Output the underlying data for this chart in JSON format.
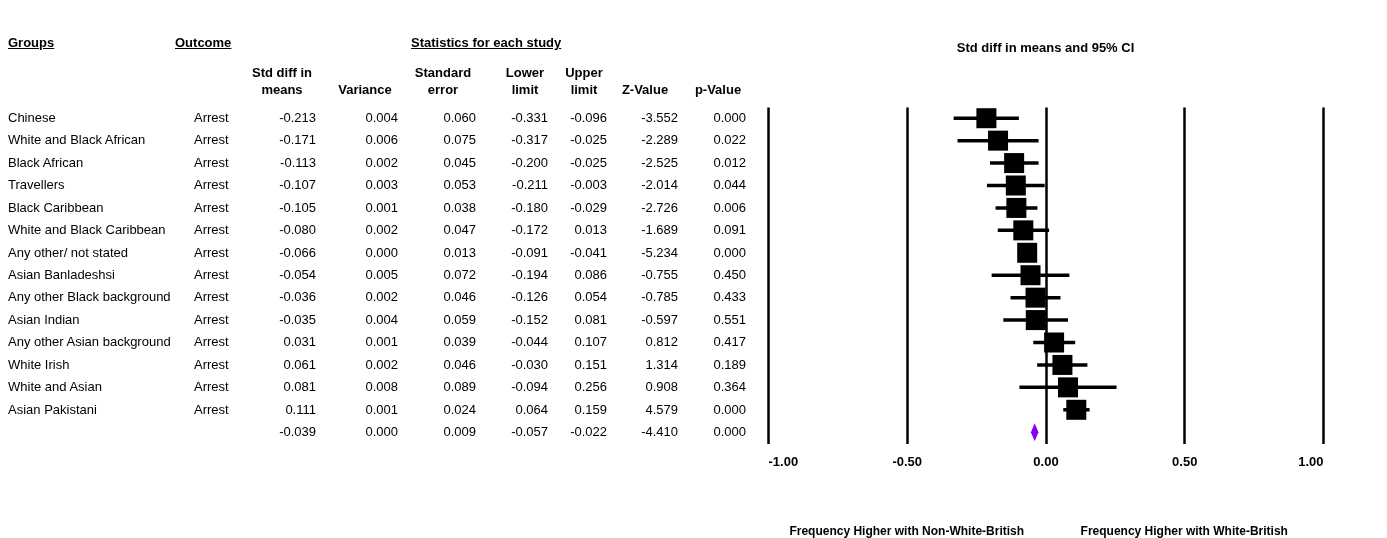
{
  "chart_data": [
    {
      "type": "other",
      "categories": [
        "Groups",
        "Outcome",
        "Std diff in means",
        "Variance",
        "Standard error",
        "Lower limit",
        "Upper limit",
        "Z-Value",
        "p-Value"
      ],
      "annotations": [
        "Statistics for each study"
      ],
      "cell_labels": [
        [
          "Chinese",
          "Arrest",
          "-0.213",
          "0.004",
          "0.060",
          "-0.331",
          "-0.096",
          "-3.552",
          "0.000"
        ],
        [
          "White and Black African",
          "Arrest",
          "-0.171",
          "0.006",
          "0.075",
          "-0.317",
          "-0.025",
          "-2.289",
          "0.022"
        ],
        [
          "Black African",
          "Arrest",
          "-0.113",
          "0.002",
          "0.045",
          "-0.200",
          "-0.025",
          "-2.525",
          "0.012"
        ],
        [
          "Travellers",
          "Arrest",
          "-0.107",
          "0.003",
          "0.053",
          "-0.211",
          "-0.003",
          "-2.014",
          "0.044"
        ],
        [
          "Black Caribbean",
          "Arrest",
          "-0.105",
          "0.001",
          "0.038",
          "-0.180",
          "-0.029",
          "-2.726",
          "0.006"
        ],
        [
          "White and Black Caribbean",
          "Arrest",
          "-0.080",
          "0.002",
          "0.047",
          "-0.172",
          "0.013",
          "-1.689",
          "0.091"
        ],
        [
          "Any other/ not stated",
          "Arrest",
          "-0.066",
          "0.000",
          "0.013",
          "-0.091",
          "-0.041",
          "-5.234",
          "0.000"
        ],
        [
          "Asian Banladeshsi",
          "Arrest",
          "-0.054",
          "0.005",
          "0.072",
          "-0.194",
          "0.086",
          "-0.755",
          "0.450"
        ],
        [
          "Any other Black background",
          "Arrest",
          "-0.036",
          "0.002",
          "0.046",
          "-0.126",
          "0.054",
          "-0.785",
          "0.433"
        ],
        [
          "Asian Indian",
          "Arrest",
          "-0.035",
          "0.004",
          "0.059",
          "-0.152",
          "0.081",
          "-0.597",
          "0.551"
        ],
        [
          "Any other Asian background",
          "Arrest",
          "0.031",
          "0.001",
          "0.039",
          "-0.044",
          "0.107",
          "0.812",
          "0.417"
        ],
        [
          "White Irish",
          "Arrest",
          "0.061",
          "0.002",
          "0.046",
          "-0.030",
          "0.151",
          "1.314",
          "0.189"
        ],
        [
          "White and Asian",
          "Arrest",
          "0.081",
          "0.008",
          "0.089",
          "-0.094",
          "0.256",
          "0.908",
          "0.364"
        ],
        [
          "Asian Pakistani",
          "Arrest",
          "0.111",
          "0.001",
          "0.024",
          "0.064",
          "0.159",
          "4.579",
          "0.000"
        ],
        [
          null,
          null,
          "-0.039",
          "0.000",
          "0.009",
          "-0.057",
          "-0.022",
          "-4.410",
          "0.000"
        ]
      ]
    },
    {
      "type": "scatter",
      "title": "Std diff in means and 95% CI",
      "orientation": "horizontal",
      "categories": [
        null,
        null,
        null,
        null,
        null,
        null,
        null,
        null,
        null,
        null,
        null,
        null,
        null,
        null,
        null
      ],
      "series": [
        {
          "color": "#000000",
          "marker": "square",
          "values": [
            -0.213,
            -0.171,
            -0.113,
            -0.107,
            -0.105,
            -0.08,
            -0.066,
            -0.054,
            -0.036,
            -0.035,
            0.031,
            0.061,
            0.081,
            0.111,
            null
          ],
          "errors": [
            [
              -0.331,
              -0.096
            ],
            [
              -0.317,
              -0.025
            ],
            [
              -0.2,
              -0.025
            ],
            [
              -0.211,
              -0.003
            ],
            [
              -0.18,
              -0.029
            ],
            [
              -0.172,
              0.013
            ],
            [
              -0.091,
              -0.041
            ],
            [
              -0.194,
              0.086
            ],
            [
              -0.126,
              0.054
            ],
            [
              -0.152,
              0.081
            ],
            [
              -0.044,
              0.107
            ],
            [
              -0.03,
              0.151
            ],
            [
              -0.094,
              0.256
            ],
            [
              0.064,
              0.159
            ],
            null
          ]
        },
        {
          "color": "#8000ff",
          "marker": "diamond",
          "values": [
            null,
            null,
            null,
            null,
            null,
            null,
            null,
            null,
            null,
            null,
            null,
            null,
            null,
            null,
            -0.039
          ]
        }
      ],
      "xlim": [
        -1,
        1
      ],
      "xticks": [
        {
          "value": -1,
          "label": "-1.00"
        },
        {
          "value": -0.5,
          "label": "-0.50"
        },
        {
          "value": 0,
          "label": "0.00"
        },
        {
          "value": 0.5,
          "label": "0.50"
        },
        {
          "value": 1,
          "label": "1.00"
        }
      ],
      "grid": "x",
      "tick_labels": "x",
      "annotations": [
        "Frequency Higher with Non-White-British",
        "Frequency Higher with White-British"
      ]
    }
  ]
}
